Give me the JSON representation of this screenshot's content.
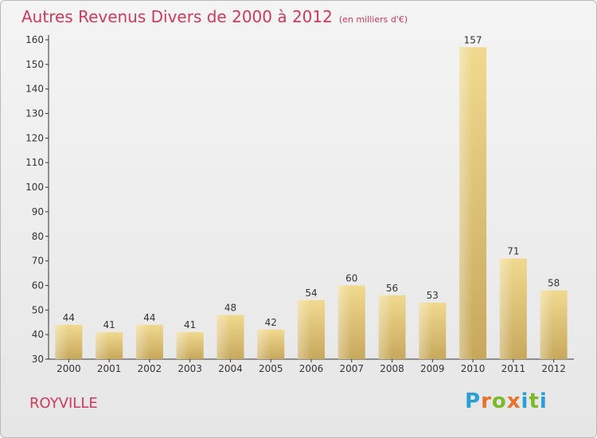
{
  "title": "Autres Revenus Divers de 2000 à 2012",
  "subtitle": "(en milliers d'€)",
  "location": "ROYVILLE",
  "logo": {
    "letters": [
      "P",
      "r",
      "o",
      "x",
      "i",
      "t",
      "i"
    ],
    "colors": [
      "#2a9fd6",
      "#e8712e",
      "#7ab929",
      "#e8712e",
      "#2a9fd6",
      "#7ab929",
      "#2a9fd6"
    ]
  },
  "colors": {
    "title": "#d23a5a",
    "bar_light": "#f0d98f",
    "bar_dark": "#c7a85c",
    "axis": "#333333"
  },
  "chart_data": {
    "type": "bar",
    "title": "Autres Revenus Divers de 2000 à 2012",
    "subtitle": "(en milliers d'€)",
    "xlabel": "",
    "ylabel": "",
    "categories": [
      "2000",
      "2001",
      "2002",
      "2003",
      "2004",
      "2005",
      "2006",
      "2007",
      "2008",
      "2009",
      "2010",
      "2011",
      "2012"
    ],
    "values": [
      44,
      41,
      44,
      41,
      48,
      42,
      54,
      60,
      56,
      53,
      157,
      71,
      58
    ],
    "ylim": [
      30,
      160
    ],
    "yticks": [
      30,
      40,
      50,
      60,
      70,
      80,
      90,
      100,
      110,
      120,
      130,
      140,
      150,
      160
    ],
    "grid": false,
    "legend": "none"
  }
}
